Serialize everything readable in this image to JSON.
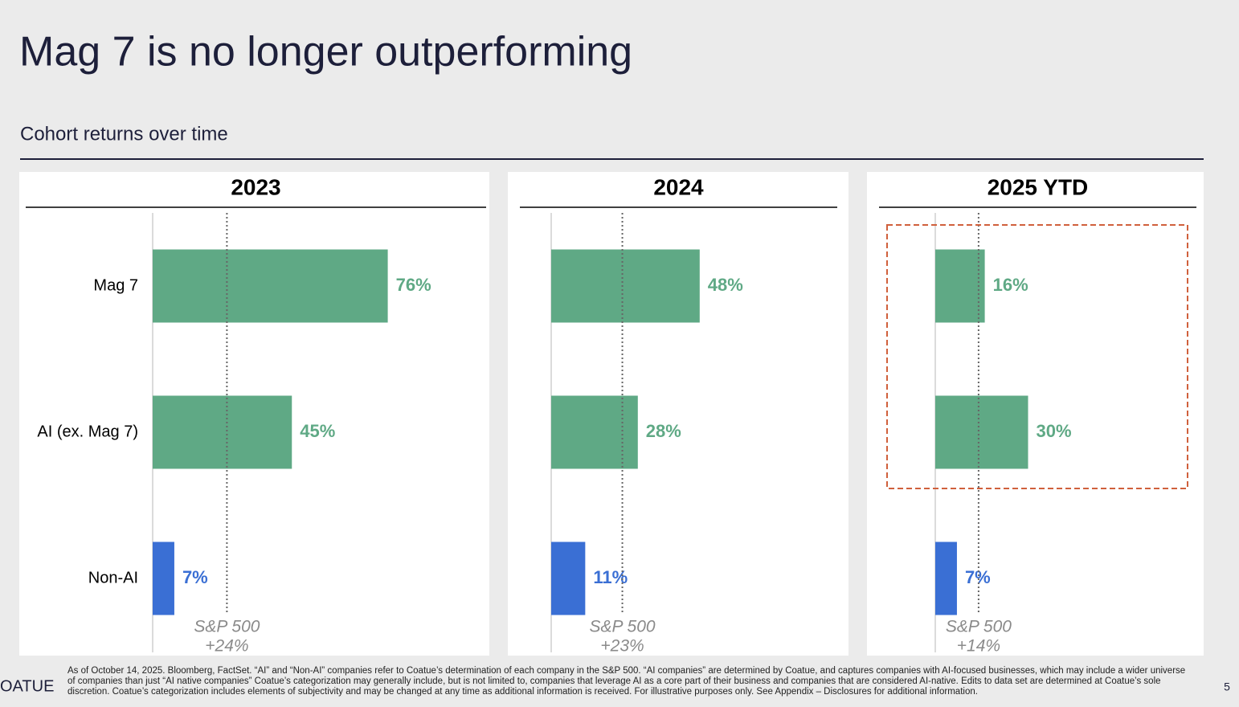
{
  "title": "Mag 7 is no longer outperforming",
  "subtitle": "Cohort returns over time",
  "chart_data": [
    {
      "type": "bar",
      "orientation": "horizontal",
      "title": "2023",
      "categories": [
        "Mag 7",
        "AI (ex. Mag 7)",
        "Non-AI"
      ],
      "values": [
        76,
        45,
        7
      ],
      "value_labels": [
        "76%",
        "45%",
        "7%"
      ],
      "colors": [
        "#5fa985",
        "#5fa985",
        "#3a6fd4"
      ],
      "reference": {
        "name": "S&P 500",
        "value": 24,
        "value_label": "+24%"
      }
    },
    {
      "type": "bar",
      "orientation": "horizontal",
      "title": "2024",
      "values": [
        48,
        28,
        11
      ],
      "value_labels": [
        "48%",
        "28%",
        "11%"
      ],
      "colors": [
        "#5fa985",
        "#5fa985",
        "#3a6fd4"
      ],
      "reference": {
        "name": "S&P 500",
        "value": 23,
        "value_label": "+23%"
      }
    },
    {
      "type": "bar",
      "orientation": "horizontal",
      "title": "2025 YTD",
      "values": [
        16,
        30,
        7
      ],
      "value_labels": [
        "16%",
        "30%",
        "7%"
      ],
      "colors": [
        "#5fa985",
        "#5fa985",
        "#3a6fd4"
      ],
      "reference": {
        "name": "S&P 500",
        "value": 14,
        "value_label": "+14%"
      }
    }
  ],
  "footnote": "As of October 14, 2025. Bloomberg, FactSet. “AI” and “Non-AI” companies refer to Coatue’s determination of each company in the S&P 500. “AI companies” are determined by Coatue, and captures companies with AI-focused businesses, which may include a wider universe of companies than just “AI native companies”  Coatue’s categorization may generally include, but is not limited to, companies that leverage AI as a core part of their business and companies that are considered AI-native. Edits to data set are determined at Coatue’s sole discretion. Coatue’s categorization includes elements of subjectivity and may be changed at any time as additional information is received. For illustrative purposes only. See Appendix – Disclosures for additional information.",
  "logo": "OATUE",
  "page_number": "5"
}
